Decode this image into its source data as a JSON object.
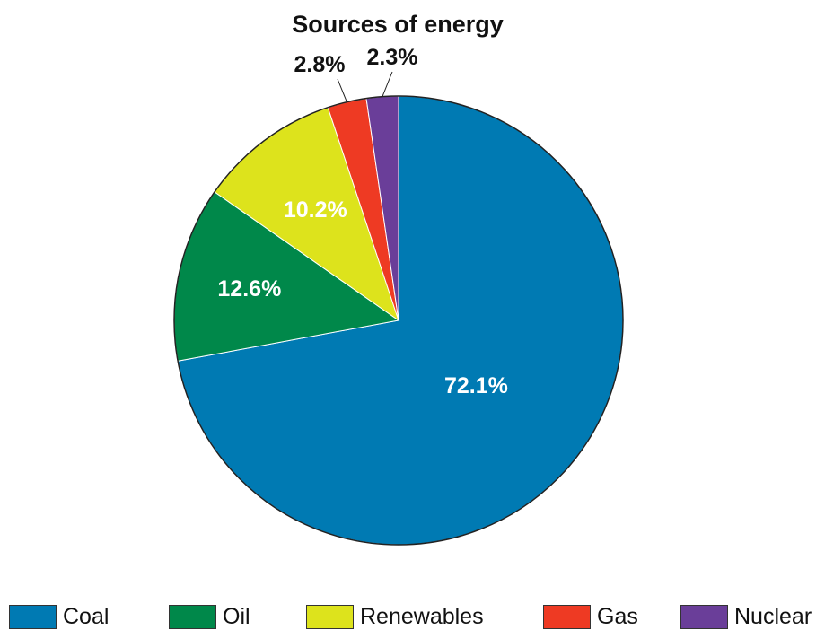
{
  "chart_data": {
    "type": "pie",
    "title": "Sources of energy",
    "slices": [
      {
        "name": "Coal",
        "value": 72.1,
        "label": "72.1%",
        "color": "#007ab3",
        "label_color": "#ffffff"
      },
      {
        "name": "Oil",
        "value": 12.6,
        "label": "12.6%",
        "color": "#00884a",
        "label_color": "#ffffff"
      },
      {
        "name": "Renewables",
        "value": 10.2,
        "label": "10.2%",
        "color": "#dde31c",
        "label_color": "#ffffff"
      },
      {
        "name": "Gas",
        "value": 2.8,
        "label": "2.8%",
        "color": "#ee3a23",
        "label_color": "#111111"
      },
      {
        "name": "Nuclear",
        "value": 2.3,
        "label": "2.3%",
        "color": "#6a3e99",
        "label_color": "#111111"
      }
    ],
    "legend": {
      "placement": "bottom",
      "items": [
        "Coal",
        "Oil",
        "Renewables",
        "Gas",
        "Nuclear"
      ]
    }
  }
}
